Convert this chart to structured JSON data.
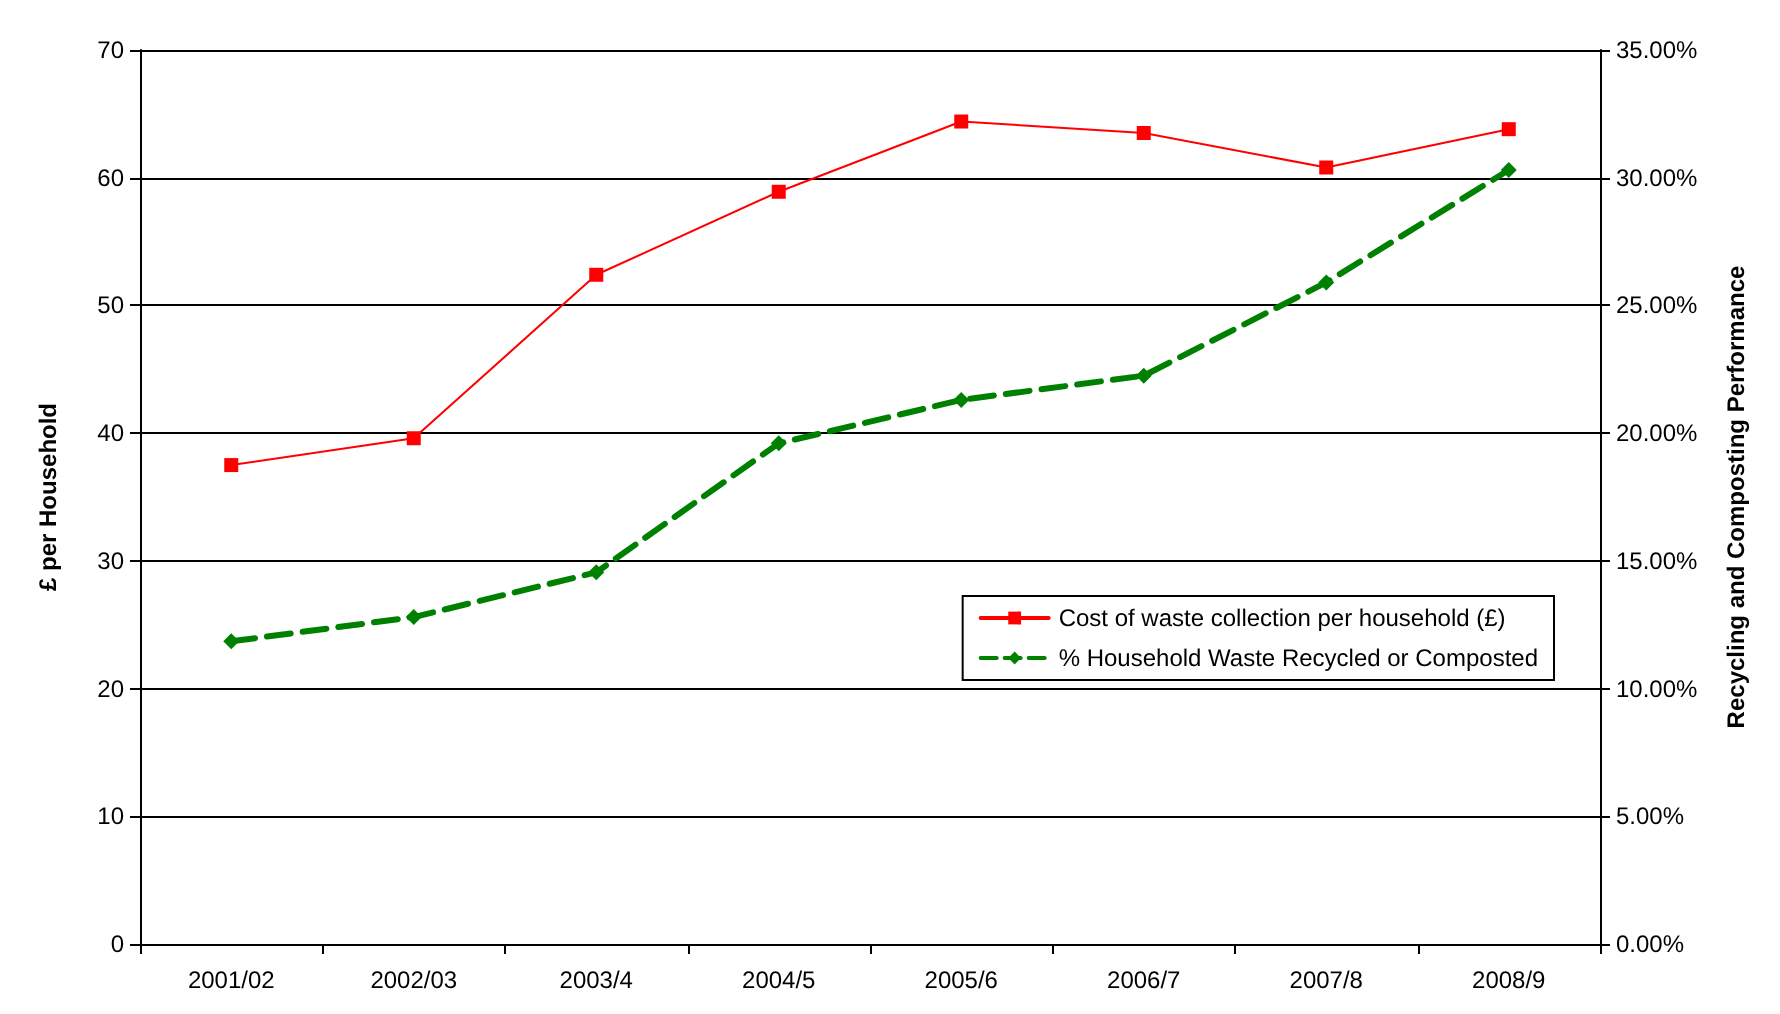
{
  "chart_data": {
    "type": "line",
    "categories": [
      "2001/02",
      "2002/03",
      "2003/4",
      "2004/5",
      "2005/6",
      "2006/7",
      "2007/8",
      "2008/9"
    ],
    "ylabel": "£ per Household",
    "y2label": "Recycling and Composting Performance",
    "ylim": [
      0,
      70
    ],
    "yticks": [
      0,
      10,
      20,
      30,
      40,
      50,
      60,
      70
    ],
    "y2lim": [
      0,
      35
    ],
    "y2ticks": [
      {
        "value": 0,
        "label": "0.00%"
      },
      {
        "value": 5,
        "label": "5.00%"
      },
      {
        "value": 10,
        "label": "10.00%"
      },
      {
        "value": 15,
        "label": "15.00%"
      },
      {
        "value": 20,
        "label": "20.00%"
      },
      {
        "value": 25,
        "label": "25.00%"
      },
      {
        "value": 30,
        "label": "30.00%"
      },
      {
        "value": 35,
        "label": "35.00%"
      }
    ],
    "grid": "y",
    "legend": "right",
    "series": [
      {
        "name": "Cost of waste collection per household (£)",
        "color": "#ff0000",
        "marker": "square",
        "line_style": "solid",
        "values": [
          37.5,
          39.6,
          52.4,
          58.9,
          64.4,
          63.5,
          60.8,
          63.8
        ]
      },
      {
        "name": "% Household Waste Recycled or Composted",
        "color": "#008000",
        "marker": "diamond",
        "line_style": "dashed",
        "axis": "y2",
        "values": [
          11.85,
          12.8,
          14.55,
          19.6,
          21.3,
          22.25,
          25.9,
          30.3
        ]
      }
    ]
  }
}
